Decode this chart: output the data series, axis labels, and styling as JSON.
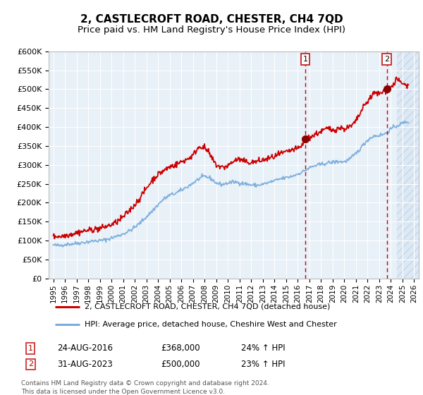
{
  "title": "2, CASTLECROFT ROAD, CHESTER, CH4 7QD",
  "subtitle": "Price paid vs. HM Land Registry's House Price Index (HPI)",
  "ylim": [
    0,
    600000
  ],
  "yticks": [
    0,
    50000,
    100000,
    150000,
    200000,
    250000,
    300000,
    350000,
    400000,
    450000,
    500000,
    550000,
    600000
  ],
  "ytick_labels": [
    "£0",
    "£50K",
    "£100K",
    "£150K",
    "£200K",
    "£250K",
    "£300K",
    "£350K",
    "£400K",
    "£450K",
    "£500K",
    "£550K",
    "£600K"
  ],
  "red_line_color": "#cc0000",
  "blue_line_color": "#7aaddc",
  "background_color": "#ffffff",
  "plot_bg_color": "#e8f0f8",
  "grid_color": "#d0d8e4",
  "vline_color": "#cc0000",
  "marker1_x": 2016.65,
  "marker1_y": 368000,
  "marker2_x": 2023.65,
  "marker2_y": 500000,
  "annotation1": [
    "1",
    "24-AUG-2016",
    "£368,000",
    "24% ↑ HPI"
  ],
  "annotation2": [
    "2",
    "31-AUG-2023",
    "£500,000",
    "23% ↑ HPI"
  ],
  "legend_red": "2, CASTLECROFT ROAD, CHESTER, CH4 7QD (detached house)",
  "legend_blue": "HPI: Average price, detached house, Cheshire West and Chester",
  "footer": "Contains HM Land Registry data © Crown copyright and database right 2024.\nThis data is licensed under the Open Government Licence v3.0.",
  "future_shade_start": 2024.5,
  "xlim_left": 1994.6,
  "xlim_right": 2026.4
}
